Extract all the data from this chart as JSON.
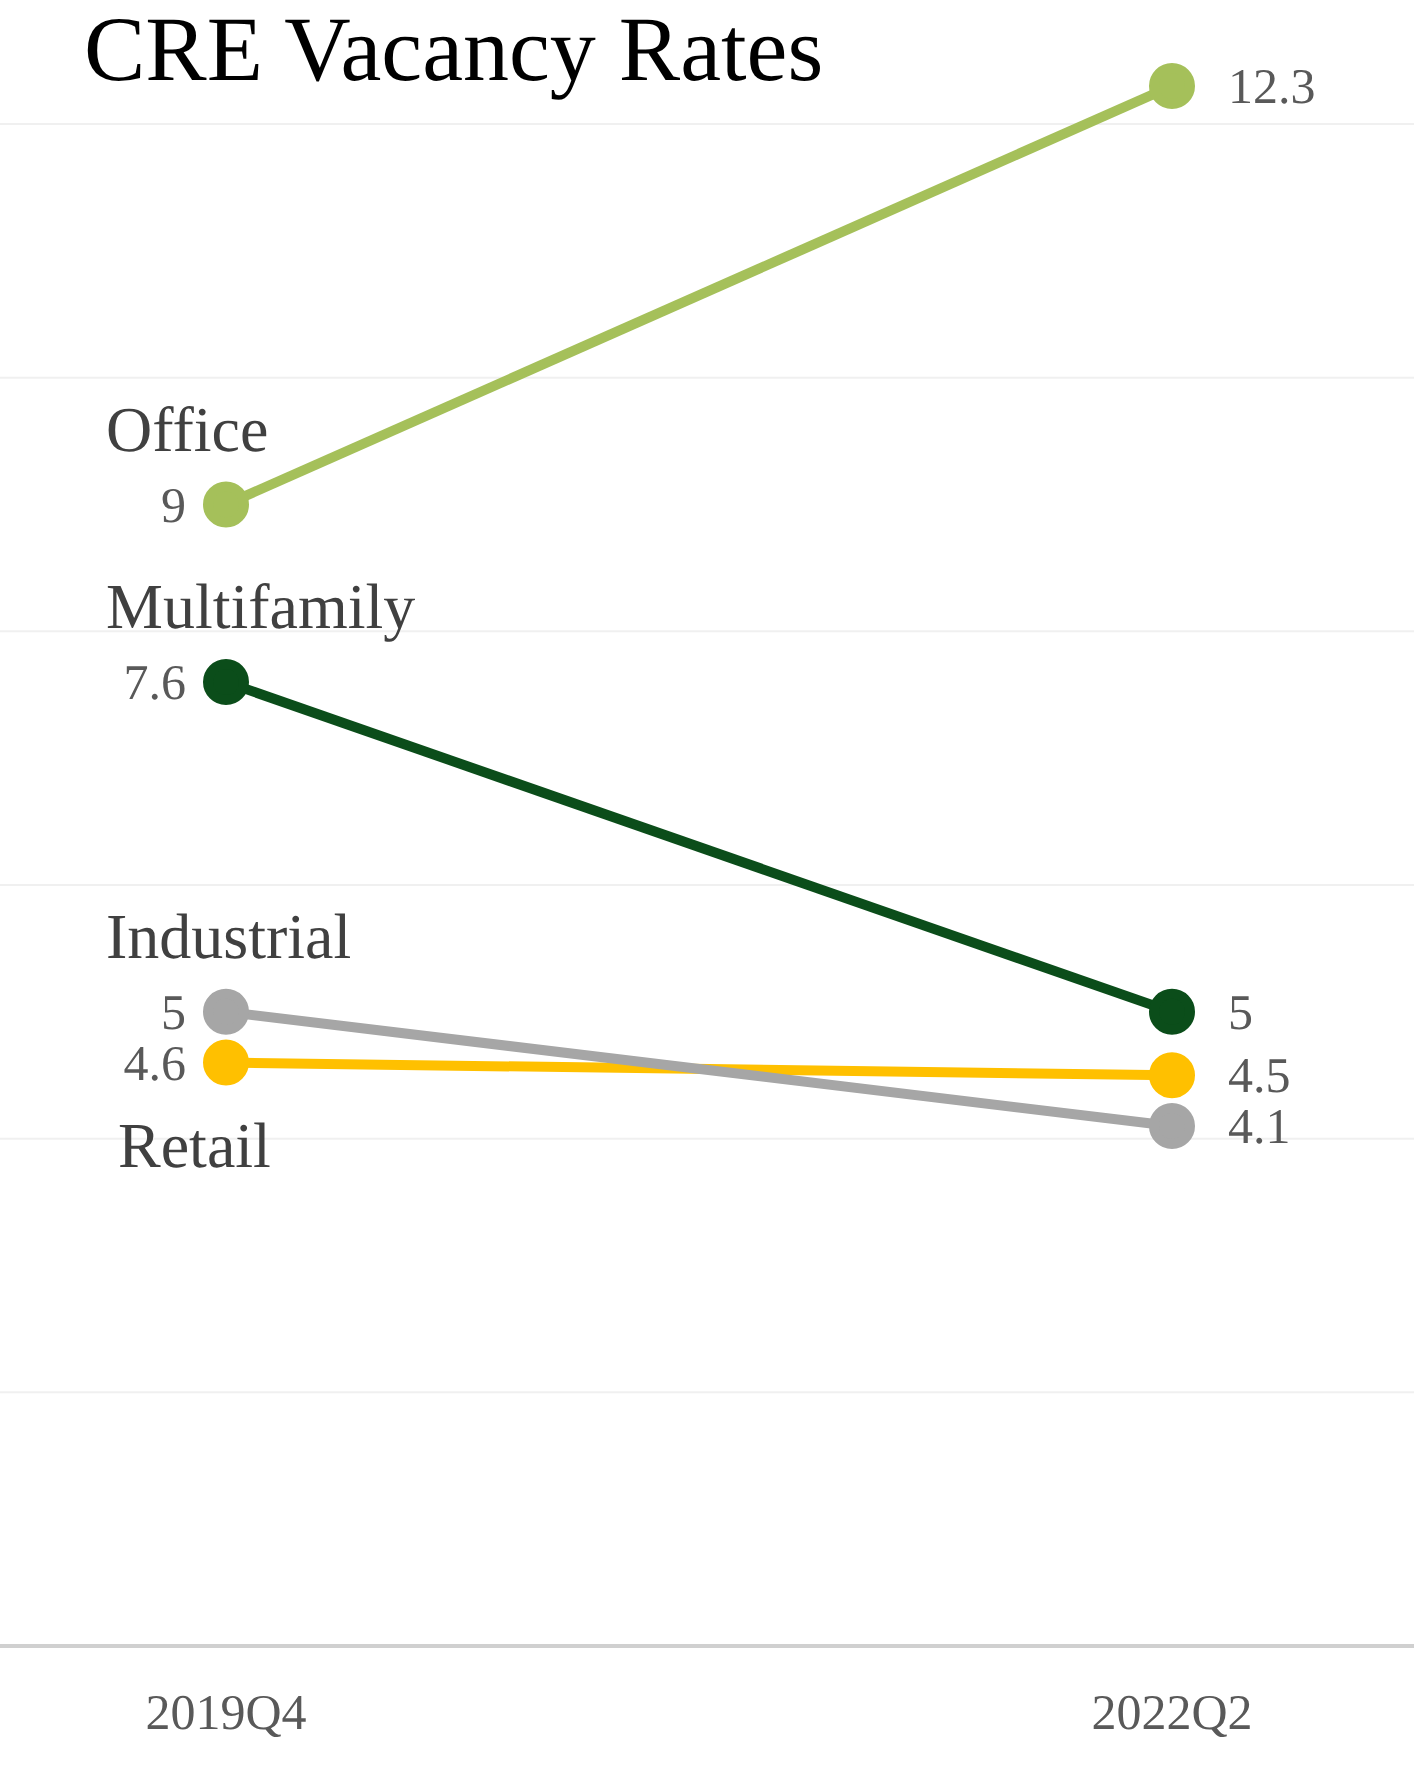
{
  "chart_data": {
    "type": "line",
    "title": "CRE Vacancy Rates",
    "categories": [
      "2019Q4",
      "2022Q2"
    ],
    "series": [
      {
        "name": "Office",
        "color": "#a5c05a",
        "values": [
          9,
          12.3
        ]
      },
      {
        "name": "Multifamily",
        "color": "#0b4d1a",
        "values": [
          7.6,
          5
        ]
      },
      {
        "name": "Industrial",
        "color": "#a6a6a6",
        "values": [
          5,
          4.1
        ]
      },
      {
        "name": "Retail",
        "color": "#ffc000",
        "values": [
          4.6,
          4.5
        ]
      }
    ],
    "yticks": [
      0,
      2,
      4,
      6,
      8,
      10,
      12
    ],
    "grid": "y",
    "tick_labels": "x",
    "data_labels": true,
    "marker": "circle",
    "legend": false
  }
}
